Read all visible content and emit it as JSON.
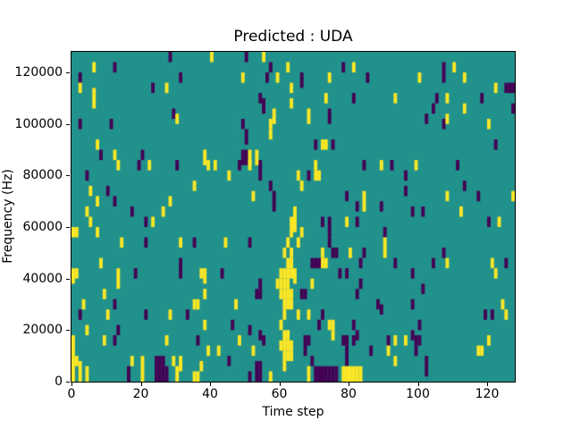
{
  "chart_data": {
    "type": "heatmap",
    "title": "Predicted : UDA",
    "xlabel": "Time step",
    "ylabel": "Frequency (Hz)",
    "x_range": [
      0,
      128
    ],
    "y_range": [
      0,
      128000
    ],
    "x_ticks": [
      0,
      20,
      40,
      60,
      80,
      100,
      120
    ],
    "y_ticks": [
      0,
      20000,
      40000,
      60000,
      80000,
      100000,
      120000
    ],
    "grid": {
      "cols": 128,
      "rows": 64
    },
    "legend": "none",
    "colors": {
      "background": "#21918c",
      "high": "#fde725",
      "low": "#440154",
      "axis": "#000000"
    },
    "cell_format": "[column(time step), row from top, row span]; high=yellow, low=dark purple, rest=teal background",
    "cells_high": [
      [
        6,
        2,
        2
      ],
      [
        2,
        6,
        2
      ],
      [
        27,
        6,
        2
      ],
      [
        6,
        7,
        4
      ],
      [
        30,
        12,
        2
      ],
      [
        7,
        17,
        2
      ],
      [
        12,
        19,
        2
      ],
      [
        40,
        0,
        2
      ],
      [
        55,
        0,
        2
      ],
      [
        62,
        2,
        2
      ],
      [
        49,
        4,
        2
      ],
      [
        59,
        4,
        2
      ],
      [
        63,
        6,
        2
      ],
      [
        63,
        9,
        2
      ],
      [
        58,
        11,
        3
      ],
      [
        57,
        13,
        2
      ],
      [
        57,
        15,
        2
      ],
      [
        38,
        19,
        3
      ],
      [
        51,
        19,
        3
      ],
      [
        53,
        19,
        3
      ],
      [
        81,
        2,
        2
      ],
      [
        74,
        4,
        2
      ],
      [
        73,
        8,
        2
      ],
      [
        93,
        8,
        2
      ],
      [
        68,
        11,
        3
      ],
      [
        72,
        17,
        2
      ],
      [
        73,
        17,
        2
      ],
      [
        110,
        2,
        2
      ],
      [
        100,
        4,
        2
      ],
      [
        113,
        4,
        2
      ],
      [
        122,
        6,
        2
      ],
      [
        108,
        8,
        2
      ],
      [
        113,
        10,
        2
      ],
      [
        108,
        12,
        2
      ],
      [
        120,
        13,
        2
      ],
      [
        13,
        21,
        2
      ],
      [
        22,
        21,
        2
      ],
      [
        5,
        26,
        2
      ],
      [
        7,
        28,
        2
      ],
      [
        28,
        28,
        2
      ],
      [
        4,
        30,
        2
      ],
      [
        26,
        30,
        2
      ],
      [
        5,
        32,
        2
      ],
      [
        23,
        32,
        2
      ],
      [
        0,
        34,
        2
      ],
      [
        1,
        34,
        2
      ],
      [
        7,
        34,
        2
      ],
      [
        14,
        36,
        2
      ],
      [
        31,
        36,
        2
      ],
      [
        8,
        40,
        2
      ],
      [
        39,
        21,
        2
      ],
      [
        41,
        21,
        2
      ],
      [
        51,
        21,
        2
      ],
      [
        45,
        23,
        2
      ],
      [
        35,
        25,
        2
      ],
      [
        52,
        27,
        2
      ],
      [
        63,
        32,
        4
      ],
      [
        44,
        36,
        2
      ],
      [
        62,
        36,
        2
      ],
      [
        61,
        38,
        2
      ],
      [
        63,
        38,
        2
      ],
      [
        62,
        40,
        2
      ],
      [
        63,
        40,
        2
      ],
      [
        70,
        21,
        2
      ],
      [
        89,
        21,
        2
      ],
      [
        65,
        23,
        2
      ],
      [
        70,
        23,
        2
      ],
      [
        71,
        23,
        2
      ],
      [
        66,
        25,
        2
      ],
      [
        84,
        27,
        4
      ],
      [
        64,
        30,
        5
      ],
      [
        79,
        32,
        2
      ],
      [
        66,
        34,
        2
      ],
      [
        65,
        36,
        2
      ],
      [
        90,
        36,
        4
      ],
      [
        72,
        38,
        2
      ],
      [
        80,
        38,
        2
      ],
      [
        72,
        40,
        2
      ],
      [
        73,
        40,
        2
      ],
      [
        99,
        21,
        2
      ],
      [
        108,
        27,
        2
      ],
      [
        127,
        27,
        2
      ],
      [
        112,
        30,
        2
      ],
      [
        123,
        32,
        2
      ],
      [
        108,
        40,
        2
      ],
      [
        121,
        40,
        2
      ],
      [
        0,
        42,
        3
      ],
      [
        1,
        42,
        2
      ],
      [
        13,
        42,
        4
      ],
      [
        9,
        46,
        2
      ],
      [
        3,
        48,
        2
      ],
      [
        10,
        50,
        2
      ],
      [
        28,
        50,
        2
      ],
      [
        4,
        53,
        2
      ],
      [
        9,
        55,
        2
      ],
      [
        0,
        55,
        4
      ],
      [
        27,
        55,
        2
      ],
      [
        0,
        59,
        5
      ],
      [
        1,
        59,
        2
      ],
      [
        2,
        60,
        4
      ],
      [
        4,
        61,
        3
      ],
      [
        17,
        59,
        2
      ],
      [
        20,
        59,
        5
      ],
      [
        29,
        59,
        2
      ],
      [
        31,
        59,
        3
      ],
      [
        30,
        61,
        3
      ],
      [
        37,
        42,
        2
      ],
      [
        38,
        42,
        3
      ],
      [
        38,
        46,
        2
      ],
      [
        35,
        48,
        2
      ],
      [
        36,
        48,
        2
      ],
      [
        47,
        48,
        2
      ],
      [
        38,
        52,
        2
      ],
      [
        48,
        55,
        2
      ],
      [
        39,
        57,
        2
      ],
      [
        42,
        57,
        2
      ],
      [
        52,
        57,
        2
      ],
      [
        37,
        60,
        2
      ],
      [
        35,
        62,
        2
      ],
      [
        36,
        62,
        2
      ],
      [
        57,
        62,
        2
      ],
      [
        60,
        42,
        2
      ],
      [
        61,
        42,
        2
      ],
      [
        62,
        42,
        2
      ],
      [
        63,
        42,
        2
      ],
      [
        59,
        44,
        2
      ],
      [
        60,
        44,
        2
      ],
      [
        61,
        44,
        2
      ],
      [
        62,
        44,
        2
      ],
      [
        60,
        46,
        2
      ],
      [
        61,
        46,
        2
      ],
      [
        62,
        46,
        2
      ],
      [
        63,
        46,
        2
      ],
      [
        61,
        48,
        2
      ],
      [
        62,
        48,
        2
      ],
      [
        63,
        48,
        2
      ],
      [
        61,
        50,
        2
      ],
      [
        60,
        52,
        2
      ],
      [
        61,
        54,
        2
      ],
      [
        62,
        54,
        2
      ],
      [
        60,
        56,
        2
      ],
      [
        61,
        56,
        2
      ],
      [
        62,
        56,
        2
      ],
      [
        63,
        56,
        2
      ],
      [
        61,
        58,
        2
      ],
      [
        62,
        58,
        2
      ],
      [
        63,
        58,
        2
      ],
      [
        61,
        60,
        2
      ],
      [
        64,
        42,
        3
      ],
      [
        69,
        44,
        2
      ],
      [
        65,
        50,
        2
      ],
      [
        68,
        50,
        2
      ],
      [
        74,
        52,
        2
      ],
      [
        75,
        52,
        2
      ],
      [
        75,
        54,
        2
      ],
      [
        93,
        55,
        2
      ],
      [
        91,
        57,
        2
      ],
      [
        93,
        59,
        2
      ],
      [
        68,
        61,
        3
      ],
      [
        78,
        61,
        3
      ],
      [
        79,
        61,
        3
      ],
      [
        80,
        61,
        3
      ],
      [
        81,
        61,
        3
      ],
      [
        82,
        61,
        3
      ],
      [
        83,
        61,
        3
      ],
      [
        122,
        42,
        2
      ],
      [
        124,
        48,
        2
      ],
      [
        125,
        50,
        2
      ],
      [
        96,
        55,
        2
      ],
      [
        120,
        55,
        2
      ],
      [
        117,
        57,
        2
      ],
      [
        118,
        57,
        2
      ]
    ],
    "cells_low": [
      [
        28,
        0,
        2
      ],
      [
        12,
        2,
        2
      ],
      [
        2,
        4,
        2
      ],
      [
        23,
        6,
        2
      ],
      [
        31,
        4,
        2
      ],
      [
        29,
        11,
        2
      ],
      [
        2,
        13,
        2
      ],
      [
        11,
        13,
        2
      ],
      [
        8,
        19,
        2
      ],
      [
        20,
        19,
        2
      ],
      [
        50,
        0,
        2
      ],
      [
        57,
        2,
        2
      ],
      [
        56,
        4,
        2
      ],
      [
        54,
        8,
        2
      ],
      [
        55,
        9,
        3
      ],
      [
        49,
        13,
        2
      ],
      [
        50,
        15,
        3
      ],
      [
        49,
        19,
        3
      ],
      [
        50,
        19,
        3
      ],
      [
        78,
        2,
        2
      ],
      [
        66,
        4,
        3
      ],
      [
        85,
        4,
        2
      ],
      [
        81,
        8,
        2
      ],
      [
        74,
        11,
        3
      ],
      [
        70,
        17,
        2
      ],
      [
        75,
        17,
        2
      ],
      [
        107,
        2,
        4
      ],
      [
        125,
        6,
        2
      ],
      [
        126,
        6,
        2
      ],
      [
        127,
        6,
        2
      ],
      [
        105,
        8,
        2
      ],
      [
        118,
        8,
        2
      ],
      [
        104,
        10,
        2
      ],
      [
        127,
        10,
        2
      ],
      [
        102,
        12,
        2
      ],
      [
        107,
        13,
        2
      ],
      [
        122,
        17,
        2
      ],
      [
        19,
        21,
        2
      ],
      [
        30,
        21,
        2
      ],
      [
        4,
        23,
        2
      ],
      [
        10,
        26,
        2
      ],
      [
        12,
        28,
        2
      ],
      [
        17,
        30,
        2
      ],
      [
        21,
        32,
        2
      ],
      [
        21,
        36,
        2
      ],
      [
        31,
        40,
        2
      ],
      [
        48,
        21,
        2
      ],
      [
        54,
        21,
        4
      ],
      [
        57,
        25,
        2
      ],
      [
        58,
        27,
        4
      ],
      [
        35,
        36,
        2
      ],
      [
        51,
        36,
        2
      ],
      [
        84,
        21,
        2
      ],
      [
        92,
        21,
        2
      ],
      [
        68,
        23,
        2
      ],
      [
        79,
        27,
        2
      ],
      [
        82,
        29,
        2
      ],
      [
        89,
        29,
        2
      ],
      [
        72,
        32,
        2
      ],
      [
        74,
        32,
        2
      ],
      [
        82,
        32,
        2
      ],
      [
        74,
        34,
        2
      ],
      [
        90,
        34,
        2
      ],
      [
        74,
        36,
        2
      ],
      [
        75,
        38,
        2
      ],
      [
        76,
        38,
        2
      ],
      [
        84,
        38,
        2
      ],
      [
        69,
        40,
        2
      ],
      [
        70,
        40,
        2
      ],
      [
        71,
        40,
        2
      ],
      [
        83,
        40,
        2
      ],
      [
        93,
        40,
        2
      ],
      [
        111,
        21,
        2
      ],
      [
        96,
        23,
        2
      ],
      [
        113,
        25,
        2
      ],
      [
        96,
        26,
        2
      ],
      [
        117,
        27,
        2
      ],
      [
        98,
        30,
        2
      ],
      [
        101,
        30,
        2
      ],
      [
        120,
        32,
        2
      ],
      [
        107,
        38,
        2
      ],
      [
        104,
        40,
        2
      ],
      [
        125,
        40,
        2
      ],
      [
        18,
        42,
        2
      ],
      [
        31,
        42,
        2
      ],
      [
        12,
        48,
        2
      ],
      [
        2,
        50,
        2
      ],
      [
        21,
        50,
        2
      ],
      [
        13,
        53,
        2
      ],
      [
        12,
        55,
        2
      ],
      [
        16,
        61,
        3
      ],
      [
        24,
        59,
        5
      ],
      [
        25,
        59,
        5
      ],
      [
        26,
        59,
        5
      ],
      [
        27,
        61,
        3
      ],
      [
        43,
        42,
        2
      ],
      [
        54,
        44,
        2
      ],
      [
        53,
        46,
        2
      ],
      [
        54,
        46,
        2
      ],
      [
        33,
        50,
        2
      ],
      [
        46,
        52,
        2
      ],
      [
        51,
        53,
        2
      ],
      [
        54,
        54,
        2
      ],
      [
        36,
        55,
        2
      ],
      [
        55,
        55,
        2
      ],
      [
        45,
        59,
        2
      ],
      [
        53,
        60,
        4
      ],
      [
        54,
        60,
        4
      ],
      [
        51,
        62,
        2
      ],
      [
        77,
        42,
        2
      ],
      [
        79,
        42,
        2
      ],
      [
        83,
        44,
        2
      ],
      [
        66,
        46,
        2
      ],
      [
        67,
        46,
        2
      ],
      [
        82,
        46,
        2
      ],
      [
        88,
        48,
        2
      ],
      [
        89,
        49,
        2
      ],
      [
        72,
        50,
        2
      ],
      [
        71,
        52,
        2
      ],
      [
        81,
        52,
        2
      ],
      [
        82,
        54,
        2
      ],
      [
        67,
        55,
        4
      ],
      [
        68,
        55,
        2
      ],
      [
        78,
        55,
        2
      ],
      [
        79,
        55,
        2
      ],
      [
        81,
        55,
        2
      ],
      [
        91,
        55,
        2
      ],
      [
        86,
        57,
        2
      ],
      [
        79,
        57,
        2
      ],
      [
        69,
        59,
        2
      ],
      [
        79,
        59,
        2
      ],
      [
        70,
        61,
        3
      ],
      [
        71,
        61,
        3
      ],
      [
        72,
        61,
        3
      ],
      [
        73,
        61,
        3
      ],
      [
        74,
        61,
        3
      ],
      [
        75,
        61,
        3
      ],
      [
        76,
        61,
        3
      ],
      [
        98,
        42,
        2
      ],
      [
        101,
        45,
        2
      ],
      [
        98,
        48,
        2
      ],
      [
        119,
        50,
        2
      ],
      [
        121,
        50,
        2
      ],
      [
        100,
        52,
        2
      ],
      [
        98,
        54,
        2
      ],
      [
        99,
        55,
        2
      ],
      [
        100,
        55,
        2
      ],
      [
        99,
        57,
        2
      ],
      [
        102,
        59,
        4
      ]
    ]
  }
}
